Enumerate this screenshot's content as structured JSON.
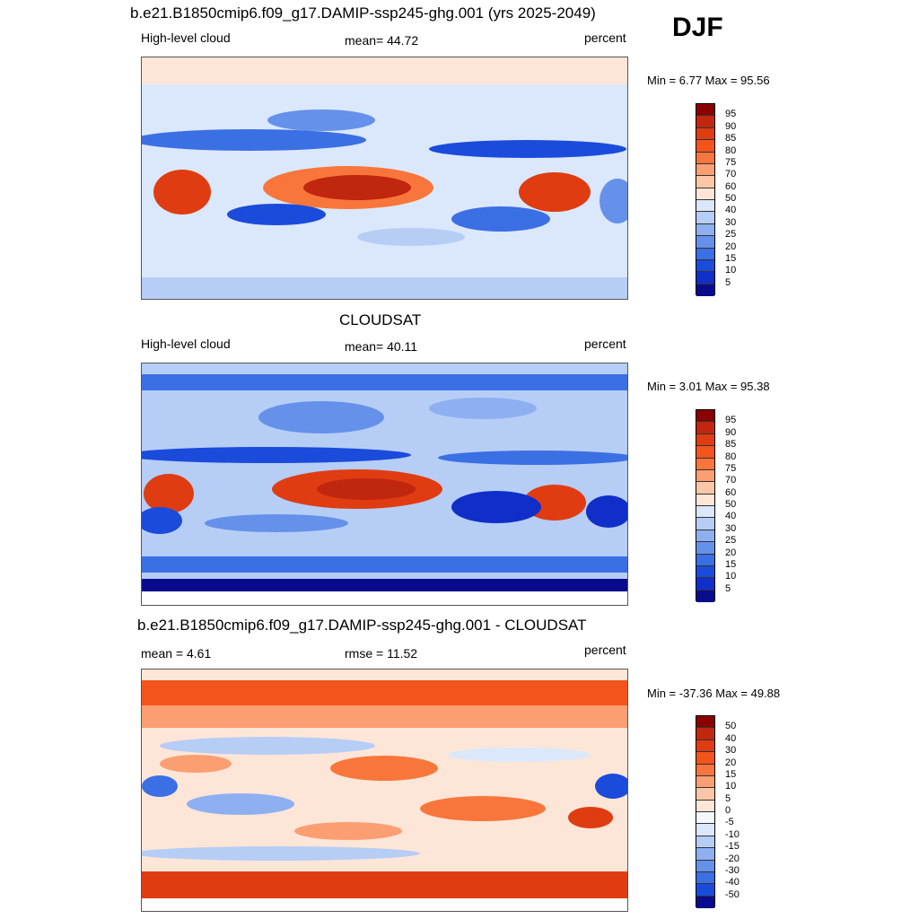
{
  "season": "DJF",
  "panels": [
    {
      "title": "b.e21.B1850cmip6.f09_g17.DAMIP-ssp245-ghg.001 (yrs 2025-2049)",
      "left_label": "High-level cloud",
      "center_label": "mean=  44.72",
      "right_label": "percent",
      "minmax": "Min =   6.77 Max =  95.56",
      "colorbar_labels": [
        "95",
        "90",
        "85",
        "80",
        "75",
        "70",
        "60",
        "50",
        "40",
        "30",
        "25",
        "20",
        "15",
        "10",
        "5"
      ],
      "colorbar_colors": [
        "#8b0000",
        "#c1260f",
        "#e03c12",
        "#f2541c",
        "#f8763b",
        "#fb9f73",
        "#fcc7a7",
        "#fde6d8",
        "#dbe8fb",
        "#b6cdf6",
        "#8fb0f0",
        "#6591ea",
        "#3b6fe4",
        "#1a4bdb",
        "#0f2fc8",
        "#0a0a8c"
      ]
    },
    {
      "title": "CLOUDSAT",
      "left_label": "High-level cloud",
      "center_label": "mean=  40.11",
      "right_label": "percent",
      "minmax": "Min =   3.01 Max =  95.38",
      "colorbar_labels": [
        "95",
        "90",
        "85",
        "80",
        "75",
        "70",
        "60",
        "50",
        "40",
        "30",
        "25",
        "20",
        "15",
        "10",
        "5"
      ],
      "colorbar_colors": [
        "#8b0000",
        "#c1260f",
        "#e03c12",
        "#f2541c",
        "#f8763b",
        "#fb9f73",
        "#fcc7a7",
        "#fde6d8",
        "#dbe8fb",
        "#b6cdf6",
        "#8fb0f0",
        "#6591ea",
        "#3b6fe4",
        "#1a4bdb",
        "#0f2fc8",
        "#0a0a8c"
      ]
    },
    {
      "title": "b.e21.B1850cmip6.f09_g17.DAMIP-ssp245-ghg.001 - CLOUDSAT",
      "left_label": "mean =   4.61",
      "center_label": "rmse =  11.52",
      "right_label": "percent",
      "minmax": "Min = -37.36 Max =  49.88",
      "colorbar_labels": [
        "50",
        "40",
        "30",
        "20",
        "15",
        "10",
        "5",
        "0",
        "-5",
        "-10",
        "-15",
        "-20",
        "-30",
        "-40",
        "-50"
      ],
      "colorbar_colors": [
        "#8b0000",
        "#c1260f",
        "#e03c12",
        "#f2541c",
        "#f8763b",
        "#fb9f73",
        "#fcc7a7",
        "#fde6d8",
        "#f4f7fc",
        "#dbe8fb",
        "#b6cdf6",
        "#8fb0f0",
        "#6591ea",
        "#3b6fe4",
        "#1a4bdb",
        "#0a0a8c"
      ]
    }
  ]
}
